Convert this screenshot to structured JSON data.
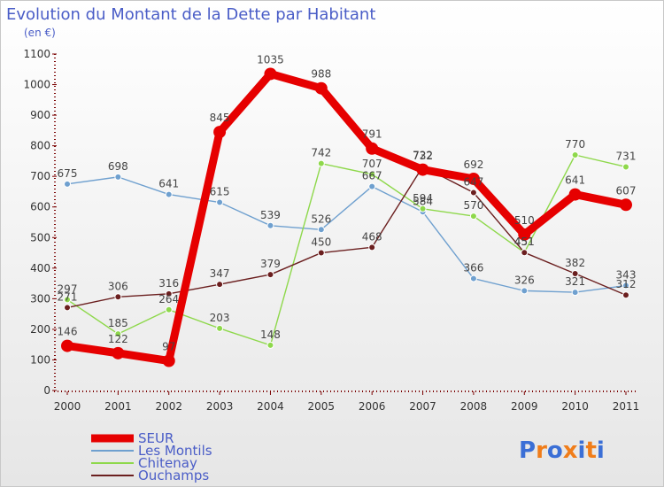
{
  "chart_data": {
    "type": "line",
    "title": "Evolution du Montant de la Dette par Habitant",
    "subtitle": "(en €)",
    "x": [
      "2000",
      "2001",
      "2002",
      "2003",
      "2004",
      "2005",
      "2006",
      "2007",
      "2008",
      "2009",
      "2010",
      "2011"
    ],
    "ylim": [
      0,
      1100
    ],
    "yticks": [
      0,
      100,
      200,
      300,
      400,
      500,
      600,
      700,
      800,
      900,
      1000,
      1100
    ],
    "grid": false,
    "legend_position": "bottom-left",
    "series": [
      {
        "name": "SEUR",
        "color": "#e60000",
        "values": [
          146,
          122,
          97,
          845,
          1035,
          988,
          791,
          722,
          692,
          510,
          641,
          607
        ]
      },
      {
        "name": "Les Montils",
        "color": "#6fa0cf",
        "values": [
          675,
          698,
          641,
          615,
          539,
          526,
          667,
          584,
          366,
          326,
          321,
          343
        ]
      },
      {
        "name": "Chitenay",
        "color": "#8ed84b",
        "values": [
          297,
          185,
          264,
          203,
          148,
          742,
          707,
          594,
          570,
          451,
          770,
          731
        ]
      },
      {
        "name": "Ouchamps",
        "color": "#6b1f1f",
        "values": [
          271,
          306,
          316,
          347,
          379,
          450,
          468,
          732,
          647,
          451,
          382,
          312
        ]
      }
    ]
  },
  "labels": {
    "SEUR": [
      "146",
      "122",
      "97",
      "845",
      "1035",
      "988",
      "791",
      "722",
      "692",
      "510",
      "641",
      "607"
    ],
    "Les Montils": [
      "675",
      "698",
      "641",
      "615",
      "539",
      "526",
      "667",
      "584",
      "366",
      "326",
      "321",
      "343"
    ],
    "Chitenay": [
      "297",
      "185",
      "264",
      "203",
      "148",
      "742",
      "707",
      "594",
      "570",
      "451",
      "770",
      "731"
    ],
    "Ouchamps": [
      "271",
      "306",
      "316",
      "347",
      "379",
      "450",
      "468",
      "732",
      "647",
      "451",
      "382",
      "312"
    ]
  },
  "logo": {
    "text": "Proxiti",
    "letter_colors": [
      "#3b6fd6",
      "#f07d1a",
      "#3b6fd6",
      "#f07d1a",
      "#3b6fd6",
      "#f07d1a",
      "#3b6fd6"
    ]
  }
}
